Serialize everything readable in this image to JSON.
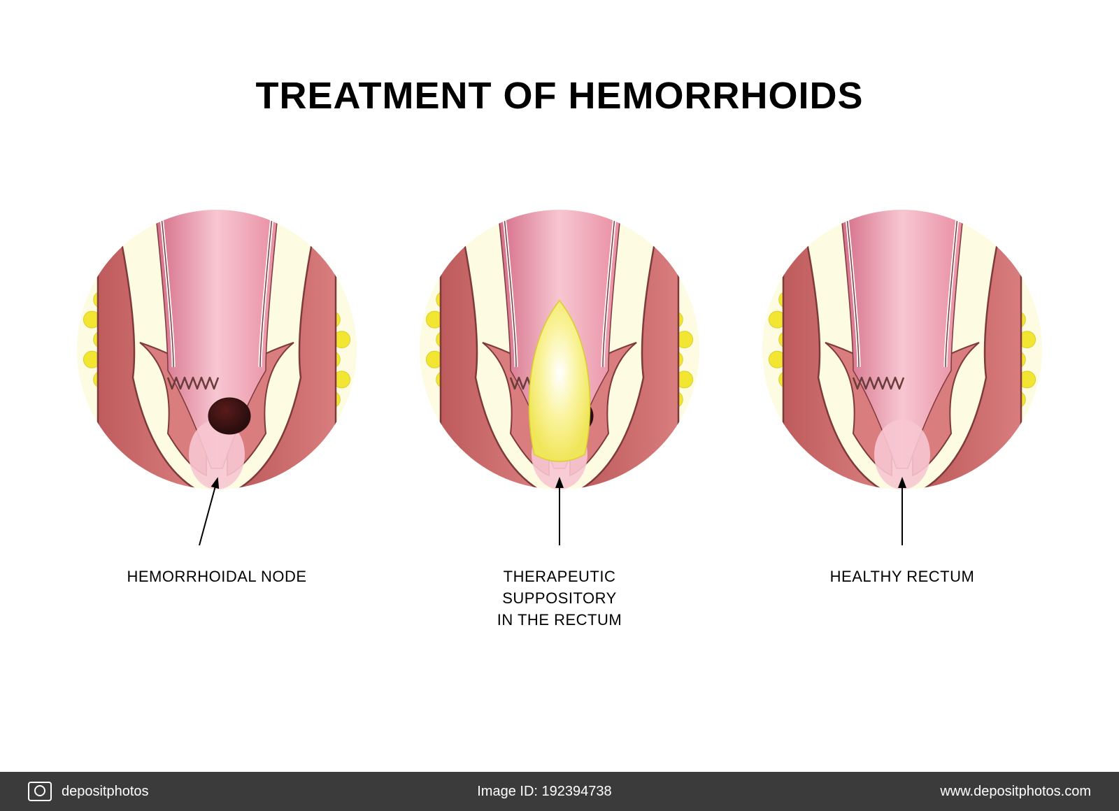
{
  "title": "TREATMENT OF HEMORRHOIDS",
  "title_fontsize": 54,
  "panels": [
    {
      "caption": "HEMORRHOIDAL NODE",
      "show_node": true,
      "show_suppository": false
    },
    {
      "caption": "THERAPEUTIC\nSUPPOSITORY\nIN THE RECTUM",
      "show_node": true,
      "show_suppository": true
    },
    {
      "caption": "HEALTHY RECTUM",
      "show_node": false,
      "show_suppository": false
    }
  ],
  "caption_fontsize": 22,
  "circle_diameter": 400,
  "colors": {
    "background": "#ffffff",
    "fat": "#f2e633",
    "fat_stroke": "#d9cf2a",
    "muscle_outer": "#be5b5c",
    "muscle_inner": "#d97d7e",
    "muscle_stroke": "#7e3a3b",
    "mucosa_light": "#f7c7d1",
    "mucosa_mid": "#e88ba0",
    "mucosa_dark": "#d46a85",
    "canal_line": "#ffffff",
    "zigzag": "#6b3c3c",
    "node_dark": "#2a0e0e",
    "node_mid": "#5a1a1a",
    "supp_core": "#ffffff",
    "supp_glow": "#faf39a",
    "arrow": "#000000",
    "footer_bg": "#3b3b3b",
    "footer_text": "#ffffff"
  },
  "footer": {
    "brand": "depositphotos",
    "image_id_label": "Image ID: 192394738",
    "site": "www.depositphotos.com"
  }
}
